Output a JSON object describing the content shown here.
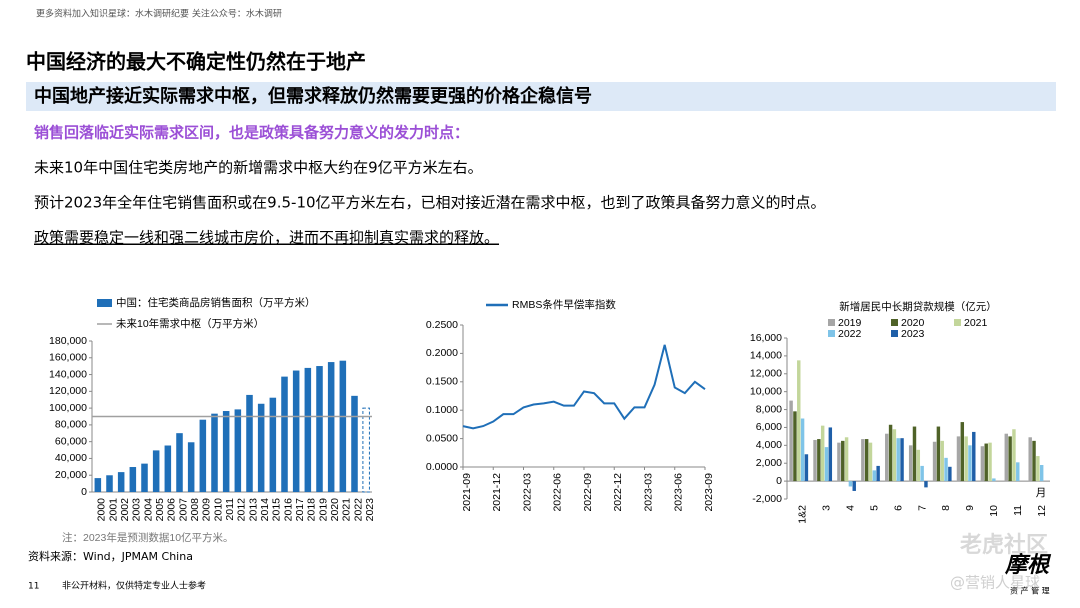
{
  "header": {
    "notice": "更多资料加入知识星球：水木调研纪要 关注公众号：水木调研",
    "title": "中国经济的最大不确定性仍然在于地产",
    "subtitle": "中国地产接近实际需求中枢，但需求释放仍然需要更强的价格企稳信号"
  },
  "lead": "销售回落临近实际需求区间，也是政策具备努力意义的发力时点：",
  "points": [
    "未来10年中国住宅类房地产的新增需求中枢大约在9亿平方米左右。",
    "预计2023年全年住宅销售面积或在9.5-10亿平方米左右，已相对接近潜在需求中枢，也到了政策具备努力意义的时点。",
    "政策需要稳定一线和强二线城市房价，进而不再抑制真实需求的释放。"
  ],
  "chart_data": [
    {
      "type": "bar",
      "categories": [
        "2000",
        "2001",
        "2002",
        "2003",
        "2004",
        "2005",
        "2006",
        "2007",
        "2008",
        "2009",
        "2010",
        "2011",
        "2012",
        "2013",
        "2014",
        "2015",
        "2016",
        "2017",
        "2018",
        "2019",
        "2020",
        "2021",
        "2022",
        "2023"
      ],
      "series": [
        {
          "name": "中国：住宅类商品房销售面积（万平方米）",
          "color": "#1f6fb8",
          "values": [
            16570,
            19939,
            23702,
            29779,
            33820,
            49588,
            55423,
            70136,
            59280,
            86185,
            93377,
            96528,
            98468,
            115723,
            105188,
            112412,
            137540,
            144789,
            147929,
            150144,
            154878,
            156532,
            114631,
            100000
          ]
        }
      ],
      "reference_line": {
        "name": "未来10年需求中枢（万平方米）",
        "value": 90000,
        "color": "#a0a0a0"
      },
      "last_bar_dashed": true,
      "ylim": [
        0,
        180000
      ],
      "yticks": [
        0,
        {
          "value": 20000,
          "label": "20,000"
        },
        {
          "value": 40000,
          "label": "40,000"
        },
        {
          "value": 60000,
          "label": "60,000"
        },
        {
          "value": 80000,
          "label": "80,000"
        },
        {
          "value": 100000,
          "label": "100,000"
        },
        {
          "value": 120000,
          "label": "120,000"
        },
        {
          "value": 140000,
          "label": "140,000"
        },
        {
          "value": 160000,
          "label": "160,000"
        },
        {
          "value": 180000,
          "label": "180,000"
        }
      ],
      "note": "注：2023年是预测数据10亿平方米。"
    },
    {
      "type": "line",
      "categories": [
        "2021-09",
        null,
        null,
        "2021-12",
        null,
        null,
        "2022-03",
        null,
        null,
        "2022-06",
        null,
        null,
        "2022-09",
        null,
        null,
        "2022-12",
        null,
        null,
        "2023-03",
        null,
        null,
        "2023-06",
        null,
        null,
        "2023-09"
      ],
      "series": [
        {
          "name": "RMBS条件早偿率指数",
          "color": "#1f6fb8",
          "values": [
            0.072,
            0.068,
            0.072,
            0.08,
            0.093,
            0.093,
            0.105,
            0.11,
            0.112,
            0.115,
            0.108,
            0.108,
            0.133,
            0.13,
            0.112,
            0.112,
            0.085,
            0.105,
            0.105,
            0.145,
            0.215,
            0.14,
            0.13,
            0.15,
            0.137
          ]
        }
      ],
      "ylim": [
        0,
        0.25
      ],
      "yticks": [
        {
          "value": 0,
          "label": "0.0000"
        },
        {
          "value": 0.05,
          "label": "0.0500"
        },
        {
          "value": 0.1,
          "label": "0.1000"
        },
        {
          "value": 0.15,
          "label": "0.1500"
        },
        {
          "value": 0.2,
          "label": "0.2000"
        },
        {
          "value": 0.25,
          "label": "0.2500"
        }
      ]
    },
    {
      "type": "grouped_bar",
      "title": "新增居民中长期贷款规模（亿元）",
      "categories": [
        "1&2",
        "3",
        "4",
        "5",
        "6",
        "7",
        "8",
        "9",
        "10",
        "11",
        "12"
      ],
      "x_unit": "月",
      "series": [
        {
          "name": "2019",
          "color": "#a6a6a6",
          "values": [
            9000,
            4600,
            4300,
            4700,
            5300,
            4000,
            4400,
            5000,
            3900,
            5300,
            4900
          ]
        },
        {
          "name": "2020",
          "color": "#4f6228",
          "values": [
            7800,
            4700,
            4500,
            4700,
            6300,
            6100,
            6100,
            6600,
            4200,
            5000,
            4500
          ]
        },
        {
          "name": "2021",
          "color": "#c3d69b",
          "values": [
            13500,
            6200,
            4900,
            4300,
            5800,
            3500,
            4500,
            5000,
            4300,
            5800,
            2800
          ]
        },
        {
          "name": "2022",
          "color": "#7fc4e8",
          "values": [
            7000,
            3800,
            -600,
            1200,
            4800,
            1700,
            2600,
            4000,
            300,
            2100,
            1800
          ]
        },
        {
          "name": "2023",
          "color": "#1f5fa8",
          "values": [
            3000,
            6000,
            -1100,
            1700,
            4800,
            -700,
            1600,
            5500,
            null,
            null,
            null
          ]
        }
      ],
      "ylim": [
        -2000,
        16000
      ],
      "yticks": [
        {
          "value": -2000,
          "label": "-2,000"
        },
        0,
        {
          "value": 2000,
          "label": "2,000"
        },
        {
          "value": 4000,
          "label": "4,000"
        },
        {
          "value": 6000,
          "label": "6,000"
        },
        {
          "value": 8000,
          "label": "8,000"
        },
        {
          "value": 10000,
          "label": "10,000"
        },
        {
          "value": 12000,
          "label": "12,000"
        },
        {
          "value": 14000,
          "label": "14,000"
        },
        {
          "value": 16000,
          "label": "16,000"
        }
      ]
    }
  ],
  "source": "资料来源：Wind，JPMAM China",
  "footer": {
    "page": "11",
    "text": "非公开材料，仅供特定专业人士参考"
  },
  "logo": {
    "name": "摩根",
    "tagline": "资 产 管 理"
  },
  "watermarks": [
    "老虎社区",
    "@营销人星球"
  ]
}
